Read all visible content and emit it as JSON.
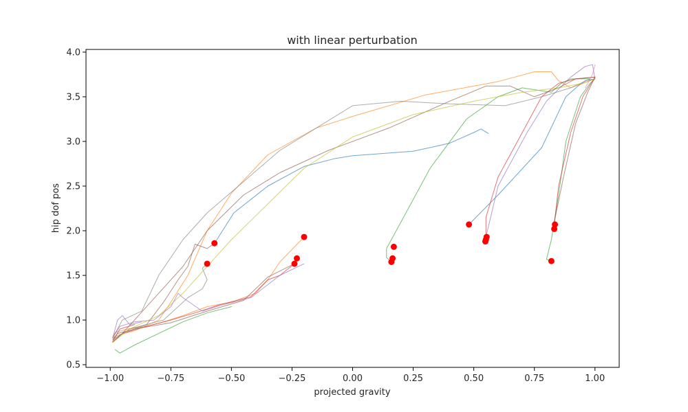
{
  "chart_data": {
    "type": "line",
    "title": "with linear perturbation",
    "xlabel": "projected gravity",
    "ylabel": "hip dof pos",
    "xlim": [
      -1.1,
      1.1
    ],
    "ylim": [
      0.47,
      4.03
    ],
    "xticks": [
      -1.0,
      -0.75,
      -0.5,
      -0.25,
      0.0,
      0.25,
      0.5,
      0.75,
      1.0
    ],
    "xtick_labels": [
      "−1.00",
      "−0.75",
      "−0.50",
      "−0.25",
      "0.00",
      "0.25",
      "0.50",
      "0.75",
      "1.00"
    ],
    "yticks": [
      0.5,
      1.0,
      1.5,
      2.0,
      2.5,
      3.0,
      3.5,
      4.0
    ],
    "ytick_labels": [
      "0.5",
      "1.0",
      "1.5",
      "2.0",
      "2.5",
      "3.0",
      "3.5",
      "4.0"
    ],
    "grid": false,
    "legend": "none",
    "series": [
      {
        "color": "#1f77b4",
        "points": [
          [
            0.56,
            3.09
          ],
          [
            0.53,
            3.14
          ],
          [
            0.5,
            3.1
          ],
          [
            0.4,
            2.98
          ],
          [
            0.25,
            2.89
          ],
          [
            0.0,
            2.84
          ],
          [
            -0.07,
            2.81
          ],
          [
            -0.2,
            2.72
          ],
          [
            -0.35,
            2.5
          ],
          [
            -0.49,
            2.2
          ],
          [
            -0.56,
            1.9
          ],
          [
            -0.57,
            1.86
          ]
        ]
      },
      {
        "color": "#1f77b4",
        "points": [
          [
            0.48,
            2.07
          ],
          [
            0.6,
            2.4
          ],
          [
            0.78,
            2.93
          ],
          [
            0.88,
            3.5
          ],
          [
            0.93,
            3.62
          ],
          [
            0.96,
            3.68
          ],
          [
            1.0,
            3.7
          ]
        ]
      },
      {
        "color": "#ff7f0e",
        "points": [
          [
            -0.2,
            1.93
          ],
          [
            -0.3,
            1.65
          ],
          [
            -0.35,
            1.45
          ],
          [
            -0.4,
            1.3
          ],
          [
            -0.5,
            1.2
          ],
          [
            -0.6,
            1.15
          ],
          [
            -0.7,
            1.05
          ],
          [
            -0.78,
            0.98
          ],
          [
            -0.85,
            0.93
          ],
          [
            -0.93,
            0.9
          ],
          [
            -0.98,
            0.86
          ],
          [
            -0.99,
            0.8
          ],
          [
            -0.97,
            0.83
          ],
          [
            -0.9,
            0.88
          ],
          [
            -0.8,
            1.0
          ],
          [
            -0.75,
            1.2
          ],
          [
            -0.68,
            1.5
          ],
          [
            -0.6,
            2.0
          ],
          [
            -0.5,
            2.42
          ],
          [
            -0.35,
            2.85
          ],
          [
            -0.15,
            3.15
          ],
          [
            0.0,
            3.28
          ],
          [
            0.3,
            3.52
          ],
          [
            0.6,
            3.67
          ],
          [
            0.75,
            3.78
          ],
          [
            0.82,
            3.78
          ],
          [
            0.85,
            3.68
          ],
          [
            0.9,
            3.6
          ],
          [
            1.0,
            3.7
          ]
        ]
      },
      {
        "color": "#2ca02c",
        "points": [
          [
            0.82,
            1.66
          ],
          [
            0.8,
            1.68
          ],
          [
            0.82,
            1.9
          ],
          [
            0.85,
            2.4
          ],
          [
            0.88,
            3.0
          ],
          [
            0.94,
            3.5
          ],
          [
            0.98,
            3.65
          ],
          [
            1.0,
            3.7
          ]
        ]
      },
      {
        "color": "#2ca02c",
        "points": [
          [
            0.16,
            1.65
          ],
          [
            0.14,
            1.7
          ],
          [
            0.14,
            1.8
          ],
          [
            0.2,
            2.1
          ],
          [
            0.32,
            2.7
          ],
          [
            0.47,
            3.25
          ],
          [
            0.6,
            3.5
          ],
          [
            0.7,
            3.6
          ],
          [
            0.82,
            3.55
          ],
          [
            0.86,
            3.65
          ],
          [
            0.9,
            3.7
          ],
          [
            0.98,
            3.7
          ]
        ]
      },
      {
        "color": "#2ca02c",
        "points": [
          [
            -0.98,
            0.67
          ],
          [
            -0.96,
            0.63
          ],
          [
            -0.9,
            0.72
          ],
          [
            -0.8,
            0.85
          ],
          [
            -0.7,
            0.98
          ],
          [
            -0.6,
            1.08
          ],
          [
            -0.5,
            1.15
          ]
        ]
      },
      {
        "color": "#d62728",
        "points": [
          [
            0.83,
            2.02
          ],
          [
            0.85,
            2.5
          ],
          [
            0.9,
            3.1
          ],
          [
            0.95,
            3.5
          ],
          [
            1.0,
            3.72
          ]
        ]
      },
      {
        "color": "#d62728",
        "points": [
          [
            0.55,
            1.88
          ],
          [
            0.55,
            2.15
          ],
          [
            0.6,
            2.6
          ],
          [
            0.7,
            3.1
          ],
          [
            0.78,
            3.5
          ],
          [
            0.85,
            3.65
          ],
          [
            0.92,
            3.7
          ],
          [
            1.0,
            3.72
          ]
        ]
      },
      {
        "color": "#d62728",
        "points": [
          [
            -0.24,
            1.63
          ],
          [
            -0.3,
            1.5
          ],
          [
            -0.35,
            1.45
          ],
          [
            -0.42,
            1.26
          ],
          [
            -0.55,
            1.17
          ],
          [
            -0.65,
            1.08
          ],
          [
            -0.75,
            1.0
          ],
          [
            -0.85,
            0.93
          ],
          [
            -0.95,
            0.85
          ],
          [
            -0.99,
            0.76
          ],
          [
            -0.96,
            0.9
          ],
          [
            -0.9,
            0.95
          ]
        ]
      },
      {
        "color": "#9467bd",
        "points": [
          [
            -0.2,
            1.63
          ],
          [
            -0.3,
            1.5
          ],
          [
            -0.42,
            1.25
          ],
          [
            -0.55,
            1.16
          ],
          [
            -0.62,
            1.1
          ],
          [
            -0.7,
            1.25
          ],
          [
            -0.72,
            1.3
          ],
          [
            -0.75,
            1.15
          ],
          [
            -0.82,
            1.0
          ],
          [
            -0.9,
            0.98
          ],
          [
            -0.96,
            0.93
          ],
          [
            -0.99,
            0.8
          ],
          [
            -0.97,
            1.0
          ],
          [
            -0.95,
            1.05
          ],
          [
            -0.92,
            0.95
          ],
          [
            -0.87,
            0.98
          ]
        ]
      },
      {
        "color": "#9467bd",
        "points": [
          [
            0.55,
            1.93
          ],
          [
            0.6,
            2.5
          ],
          [
            0.72,
            3.1
          ],
          [
            0.8,
            3.45
          ],
          [
            0.9,
            3.72
          ],
          [
            0.96,
            3.84
          ],
          [
            0.99,
            3.86
          ],
          [
            1.0,
            3.7
          ]
        ]
      },
      {
        "color": "#8c564b",
        "points": [
          [
            -0.57,
            1.86
          ],
          [
            -0.6,
            1.8
          ],
          [
            -0.65,
            1.85
          ],
          [
            -0.68,
            1.6
          ],
          [
            -0.72,
            1.45
          ],
          [
            -0.78,
            1.2
          ],
          [
            -0.85,
            0.95
          ],
          [
            -0.92,
            0.9
          ],
          [
            -0.99,
            0.78
          ],
          [
            -0.97,
            0.85
          ],
          [
            -0.9,
            0.9
          ],
          [
            -0.75,
            0.97
          ],
          [
            -0.6,
            1.1
          ],
          [
            -0.45,
            1.22
          ],
          [
            -0.35,
            1.48
          ],
          [
            -0.24,
            1.63
          ]
        ]
      },
      {
        "color": "#8c564b",
        "points": [
          [
            -0.99,
            0.75
          ],
          [
            -0.95,
            0.85
          ],
          [
            -0.9,
            1.0
          ],
          [
            -0.8,
            1.3
          ],
          [
            -0.7,
            1.6
          ],
          [
            -0.6,
            2.0
          ],
          [
            -0.45,
            2.4
          ],
          [
            -0.3,
            2.65
          ],
          [
            -0.1,
            2.9
          ],
          [
            0.15,
            3.15
          ],
          [
            0.4,
            3.45
          ],
          [
            0.55,
            3.62
          ],
          [
            0.65,
            3.62
          ],
          [
            0.75,
            3.5
          ],
          [
            0.85,
            3.6
          ],
          [
            0.92,
            3.7
          ],
          [
            1.0,
            3.72
          ]
        ]
      },
      {
        "color": "#8c564b",
        "points": [
          [
            0.83,
            2.07
          ],
          [
            0.87,
            2.6
          ],
          [
            0.92,
            3.2
          ],
          [
            0.97,
            3.55
          ],
          [
            1.0,
            3.72
          ]
        ]
      },
      {
        "color": "#7f7f7f",
        "points": [
          [
            -0.6,
            1.63
          ],
          [
            -0.62,
            1.58
          ],
          [
            -0.6,
            1.45
          ],
          [
            -0.62,
            1.35
          ],
          [
            -0.68,
            1.25
          ],
          [
            -0.72,
            1.15
          ],
          [
            -0.78,
            1.0
          ],
          [
            -0.85,
            0.95
          ],
          [
            -0.95,
            0.85
          ],
          [
            -0.99,
            0.75
          ]
        ]
      },
      {
        "color": "#7f7f7f",
        "points": [
          [
            -0.99,
            0.8
          ],
          [
            -0.95,
            1.0
          ],
          [
            -0.87,
            1.1
          ],
          [
            -0.8,
            1.5
          ],
          [
            -0.7,
            1.9
          ],
          [
            -0.6,
            2.2
          ],
          [
            -0.45,
            2.55
          ],
          [
            -0.3,
            2.9
          ],
          [
            -0.15,
            3.15
          ],
          [
            0.0,
            3.4
          ],
          [
            0.2,
            3.45
          ],
          [
            0.4,
            3.42
          ],
          [
            0.63,
            3.4
          ],
          [
            0.78,
            3.5
          ],
          [
            0.9,
            3.6
          ],
          [
            0.98,
            3.7
          ]
        ]
      },
      {
        "color": "#bcbd22",
        "points": [
          [
            -0.99,
            0.75
          ],
          [
            -0.92,
            0.9
          ],
          [
            -0.8,
            1.05
          ],
          [
            -0.7,
            1.3
          ],
          [
            -0.6,
            1.6
          ],
          [
            -0.5,
            1.9
          ],
          [
            -0.35,
            2.3
          ],
          [
            -0.2,
            2.7
          ],
          [
            0.0,
            3.05
          ],
          [
            0.25,
            3.3
          ],
          [
            0.5,
            3.45
          ],
          [
            0.7,
            3.55
          ],
          [
            0.85,
            3.6
          ],
          [
            0.95,
            3.65
          ],
          [
            1.0,
            3.7
          ]
        ]
      },
      {
        "color": "#e377c2",
        "points": [
          [
            0.96,
            3.6
          ],
          [
            0.99,
            3.75
          ],
          [
            1.0,
            3.86
          ]
        ]
      }
    ],
    "markers": {
      "color": "#ff0000",
      "points": [
        [
          -0.57,
          1.86
        ],
        [
          -0.6,
          1.63
        ],
        [
          -0.2,
          1.93
        ],
        [
          -0.23,
          1.69
        ],
        [
          -0.24,
          1.63
        ],
        [
          0.17,
          1.82
        ],
        [
          0.165,
          1.69
        ],
        [
          0.16,
          1.65
        ],
        [
          0.48,
          2.07
        ],
        [
          0.553,
          1.93
        ],
        [
          0.55,
          1.9
        ],
        [
          0.548,
          1.88
        ],
        [
          0.835,
          2.07
        ],
        [
          0.832,
          2.02
        ],
        [
          0.82,
          1.66
        ]
      ]
    }
  }
}
